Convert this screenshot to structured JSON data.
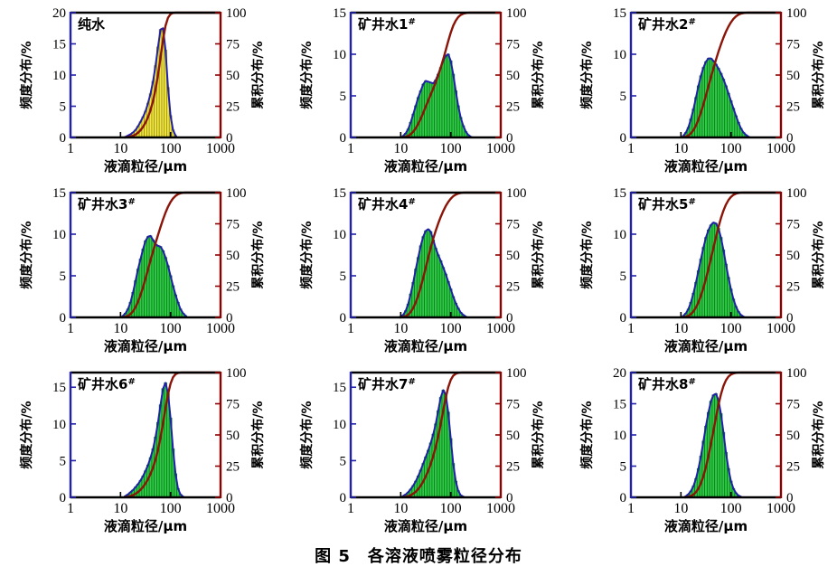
{
  "caption": "图 5　各溶液喷雾粒径分布",
  "colors": {
    "frame_black": "#000000",
    "axis_left_blue": "#2020a8",
    "axis_right_red": "#8b0000",
    "cumulative_curve": "#8b1408",
    "envelope_blue": "#2020a8",
    "yellow_fill": "#f0e63c",
    "yellow_edge": "#9a8f1f",
    "green_fill": "#2fcb45",
    "green_edge": "#0a7a1e",
    "text": "#000000"
  },
  "axes": {
    "xlabel": "液滴粒径/μm",
    "ylabel_left": "频度分布/%",
    "ylabel_right": "累积分布/%",
    "xlim": [
      1,
      1000
    ],
    "xtick_labels": [
      "1",
      "10",
      "100",
      "1000"
    ],
    "xtick_values": [
      1,
      10,
      100,
      1000
    ],
    "ylim_right": [
      0,
      100
    ],
    "yticks_right": [
      0,
      25,
      50,
      75,
      100
    ],
    "x_log": true
  },
  "chart_data": [
    {
      "type": "histogram+cumulative-line",
      "label": "纯水",
      "label_sup": "",
      "fill": "yellow",
      "ylim_left": [
        0,
        20
      ],
      "yticks_left": [
        0,
        5,
        10,
        15,
        20
      ],
      "x": [
        12.6,
        14.1,
        15.8,
        17.8,
        20,
        22.4,
        25.1,
        28.2,
        31.6,
        35.5,
        39.8,
        44.7,
        50.1,
        56.2,
        63.1,
        70.8,
        79.4,
        89.1,
        100,
        112,
        126
      ],
      "freq": [
        0.1,
        0.3,
        0.5,
        0.8,
        1.2,
        1.8,
        2.5,
        3.3,
        4.2,
        5.5,
        7.0,
        9.0,
        11.5,
        14.5,
        17.3,
        17.5,
        14.0,
        8.0,
        3.5,
        1.2,
        0.3
      ]
    },
    {
      "type": "histogram+cumulative-line",
      "label": "矿井水1",
      "label_sup": "#",
      "fill": "green",
      "ylim_left": [
        0,
        15
      ],
      "yticks_left": [
        0,
        5,
        10,
        15
      ],
      "x": [
        11.2,
        12.6,
        14.1,
        15.8,
        17.8,
        20,
        22.4,
        25.1,
        28.2,
        31.6,
        35.5,
        39.8,
        44.7,
        50.1,
        56.2,
        63.1,
        70.8,
        79.4,
        89.1,
        100,
        112,
        126,
        141,
        158,
        178,
        200,
        224,
        251
      ],
      "freq": [
        0.2,
        0.5,
        1.0,
        1.8,
        2.8,
        3.8,
        4.8,
        5.6,
        6.4,
        6.8,
        6.7,
        6.6,
        6.5,
        6.9,
        7.6,
        8.4,
        9.2,
        9.8,
        10.0,
        9.2,
        7.6,
        5.6,
        3.8,
        2.4,
        1.4,
        0.7,
        0.3,
        0.1
      ]
    },
    {
      "type": "histogram+cumulative-line",
      "label": "矿井水2",
      "label_sup": "#",
      "fill": "green",
      "ylim_left": [
        0,
        15
      ],
      "yticks_left": [
        0,
        5,
        10,
        15
      ],
      "x": [
        11.2,
        12.6,
        14.1,
        15.8,
        17.8,
        20,
        22.4,
        25.1,
        28.2,
        31.6,
        35.5,
        39.8,
        44.7,
        50.1,
        56.2,
        63.1,
        70.8,
        79.4,
        89.1,
        100,
        112,
        126,
        141,
        158,
        178,
        200,
        224
      ],
      "freq": [
        0.2,
        0.6,
        1.2,
        2.2,
        3.4,
        4.8,
        6.2,
        7.4,
        8.4,
        9.1,
        9.5,
        9.5,
        9.2,
        8.8,
        8.3,
        7.7,
        7.0,
        6.2,
        5.3,
        4.4,
        3.5,
        2.6,
        1.8,
        1.1,
        0.6,
        0.3,
        0.1
      ]
    },
    {
      "type": "histogram+cumulative-line",
      "label": "矿井水3",
      "label_sup": "#",
      "fill": "green",
      "ylim_left": [
        0,
        15
      ],
      "yticks_left": [
        0,
        5,
        10,
        15
      ],
      "x": [
        11.2,
        12.6,
        14.1,
        15.8,
        17.8,
        20,
        22.4,
        25.1,
        28.2,
        31.6,
        35.5,
        39.8,
        44.7,
        50.1,
        56.2,
        63.1,
        70.8,
        79.4,
        89.1,
        100,
        112,
        126,
        141,
        158,
        178,
        200
      ],
      "freq": [
        0.2,
        0.5,
        1.0,
        1.8,
        3.0,
        4.4,
        5.8,
        7.0,
        8.2,
        9.2,
        9.7,
        9.8,
        9.3,
        8.8,
        8.6,
        8.5,
        8.0,
        7.2,
        6.2,
        5.0,
        3.8,
        2.7,
        1.8,
        1.0,
        0.5,
        0.2
      ]
    },
    {
      "type": "histogram+cumulative-line",
      "label": "矿井水4",
      "label_sup": "#",
      "fill": "green",
      "ylim_left": [
        0,
        15
      ],
      "yticks_left": [
        0,
        5,
        10,
        15
      ],
      "x": [
        10,
        11.2,
        12.6,
        14.1,
        15.8,
        17.8,
        20,
        22.4,
        25.1,
        28.2,
        31.6,
        35.5,
        39.8,
        44.7,
        50.1,
        56.2,
        63.1,
        70.8,
        79.4,
        89.1,
        100,
        112,
        126,
        141,
        158,
        178,
        200
      ],
      "freq": [
        0.1,
        0.3,
        0.8,
        1.6,
        2.8,
        4.2,
        5.8,
        7.2,
        8.6,
        9.7,
        10.4,
        10.6,
        10.3,
        9.3,
        8.3,
        7.5,
        6.8,
        6.0,
        5.2,
        4.3,
        3.4,
        2.5,
        1.7,
        1.1,
        0.6,
        0.3,
        0.1
      ]
    },
    {
      "type": "histogram+cumulative-line",
      "label": "矿井水5",
      "label_sup": "#",
      "fill": "green",
      "ylim_left": [
        0,
        15
      ],
      "yticks_left": [
        0,
        5,
        10,
        15
      ],
      "x": [
        11.2,
        12.6,
        14.1,
        15.8,
        17.8,
        20,
        22.4,
        25.1,
        28.2,
        31.6,
        35.5,
        39.8,
        44.7,
        50.1,
        56.2,
        63.1,
        70.8,
        79.4,
        89.1,
        100,
        112,
        126,
        141,
        158,
        178
      ],
      "freq": [
        0.2,
        0.5,
        1.0,
        1.8,
        2.9,
        4.2,
        5.6,
        7.0,
        8.4,
        9.6,
        10.5,
        11.1,
        11.4,
        11.3,
        10.7,
        9.6,
        8.1,
        6.4,
        4.8,
        3.4,
        2.2,
        1.3,
        0.7,
        0.3,
        0.1
      ]
    },
    {
      "type": "histogram+cumulative-line",
      "label": "矿井水6",
      "label_sup": "#",
      "fill": "green",
      "ylim_left": [
        0,
        17
      ],
      "yticks_left": [
        0,
        5,
        10,
        15
      ],
      "x": [
        12.6,
        14.1,
        15.8,
        17.8,
        20,
        22.4,
        25.1,
        28.2,
        31.6,
        35.5,
        39.8,
        44.7,
        50.1,
        56.2,
        63.1,
        70.8,
        79.4,
        89.1,
        100,
        112,
        126,
        141,
        158,
        178
      ],
      "freq": [
        0.2,
        0.4,
        0.7,
        1.0,
        1.4,
        1.8,
        2.3,
        2.9,
        3.6,
        4.4,
        5.4,
        6.6,
        8.2,
        10.2,
        12.6,
        14.8,
        15.6,
        14.2,
        10.8,
        6.6,
        3.2,
        1.2,
        0.4,
        0.1
      ]
    },
    {
      "type": "histogram+cumulative-line",
      "label": "矿井水7",
      "label_sup": "#",
      "fill": "green",
      "ylim_left": [
        0,
        17
      ],
      "yticks_left": [
        0,
        5,
        10,
        15
      ],
      "x": [
        11.2,
        12.6,
        14.1,
        15.8,
        17.8,
        20,
        22.4,
        25.1,
        28.2,
        31.6,
        35.5,
        39.8,
        44.7,
        50.1,
        56.2,
        63.1,
        70.8,
        79.4,
        89.1,
        100,
        112,
        126,
        141,
        158,
        178
      ],
      "freq": [
        0.2,
        0.4,
        0.7,
        1.1,
        1.6,
        2.2,
        2.9,
        3.7,
        4.6,
        5.5,
        6.4,
        7.4,
        8.6,
        10.0,
        11.8,
        13.6,
        14.6,
        14.0,
        11.6,
        8.0,
        4.6,
        2.2,
        0.9,
        0.3,
        0.1
      ]
    },
    {
      "type": "histogram+cumulative-line",
      "label": "矿井水8",
      "label_sup": "#",
      "fill": "green",
      "ylim_left": [
        0,
        20
      ],
      "yticks_left": [
        0,
        5,
        10,
        15,
        20
      ],
      "x": [
        12.6,
        14.1,
        15.8,
        17.8,
        20,
        22.4,
        25.1,
        28.2,
        31.6,
        35.5,
        39.8,
        44.7,
        50.1,
        56.2,
        63.1,
        70.8,
        79.4,
        89.1,
        100,
        112,
        126,
        141,
        158
      ],
      "freq": [
        0.2,
        0.5,
        1.0,
        1.8,
        3.0,
        4.6,
        6.6,
        9.0,
        11.4,
        13.6,
        15.4,
        16.4,
        16.6,
        15.6,
        13.4,
        10.4,
        7.2,
        4.6,
        2.6,
        1.4,
        0.7,
        0.3,
        0.1
      ]
    }
  ]
}
